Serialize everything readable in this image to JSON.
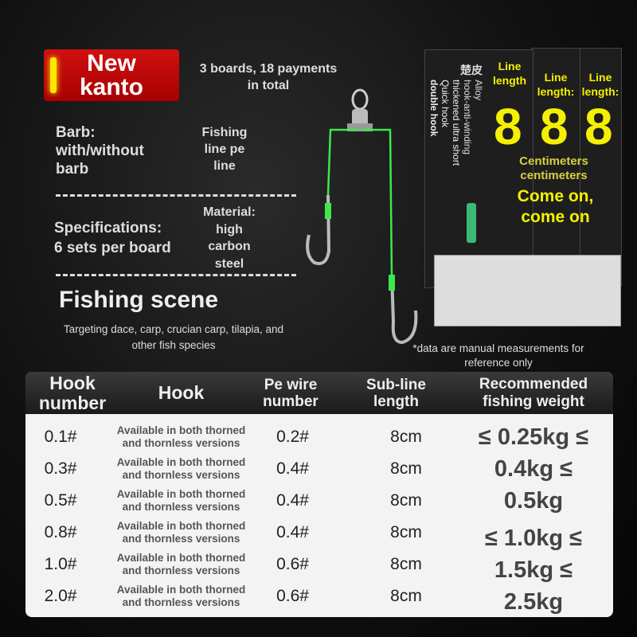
{
  "badge": {
    "line1": "New",
    "line2": "kanto"
  },
  "boards_note": {
    "line1": "3 boards, 18 payments",
    "line2": "in total"
  },
  "features": {
    "barb": {
      "line1": "Barb:",
      "line2": "with/without",
      "line3": "barb"
    },
    "line": {
      "line1": "Fishing",
      "line2": "line pe",
      "line3": "line"
    },
    "spec": {
      "line1": "Specifications:",
      "line2": "6 sets per board"
    },
    "material": {
      "line1": "Material:",
      "line2": "high",
      "line3": "carbon",
      "line4": "steel"
    }
  },
  "scene": {
    "title": "Fishing scene",
    "desc_line1": "Targeting dace, carp, crucian carp, tilapia, and",
    "desc_line2": "other fish species"
  },
  "package": {
    "brand": "楚皮",
    "line_label": "Line length",
    "line_label2": "Line length:",
    "number": "8",
    "vertical1": "Alloy",
    "vertical2": "hook-anti-winding",
    "vertical3": "thickened ultra short",
    "vertical4": "Quick hook",
    "vertical5": "double hook",
    "cm1": "Centimeters",
    "cm2": "centimeters",
    "slogan1": "Come on,",
    "slogan2": "come on"
  },
  "note": {
    "line1": "*data are manual measurements for",
    "line2": "reference only"
  },
  "table": {
    "headers": {
      "hook_number": "Hook number",
      "hook": "Hook",
      "pe": "Pe wire number",
      "sub": "Sub-line length",
      "weight": "Recommended fishing weight"
    },
    "rows": [
      {
        "num": "0.1#",
        "hook1": "Available in both thorned",
        "hook2": "and thornless versions",
        "pe": "0.2#",
        "len": "8cm"
      },
      {
        "num": "0.3#",
        "hook1": "Available in both thorned",
        "hook2": "and thornless versions",
        "pe": "0.4#",
        "len": "8cm"
      },
      {
        "num": "0.5#",
        "hook1": "Available in both thorned",
        "hook2": "and thornless versions",
        "pe": "0.4#",
        "len": "8cm"
      },
      {
        "num": "0.8#",
        "hook1": "Available in both thorned",
        "hook2": "and thornless versions",
        "pe": "0.4#",
        "len": "8cm"
      },
      {
        "num": "1.0#",
        "hook1": "Available in both thorned",
        "hook2": "and thornless versions",
        "pe": "0.6#",
        "len": "8cm"
      },
      {
        "num": "2.0#",
        "hook1": "Available in both thorned",
        "hook2": "and thornless versions",
        "pe": "0.6#",
        "len": "8cm"
      }
    ],
    "weights_a": [
      "≤ 0.25kg ≤",
      "0.4kg ≤",
      "0.5kg"
    ],
    "weights_b": [
      "≤ 1.0kg ≤",
      "1.5kg ≤",
      "2.5kg"
    ]
  },
  "colors": {
    "badge": "#c00000",
    "accent_yellow": "#f4f000",
    "line_green": "#3ee84a"
  }
}
